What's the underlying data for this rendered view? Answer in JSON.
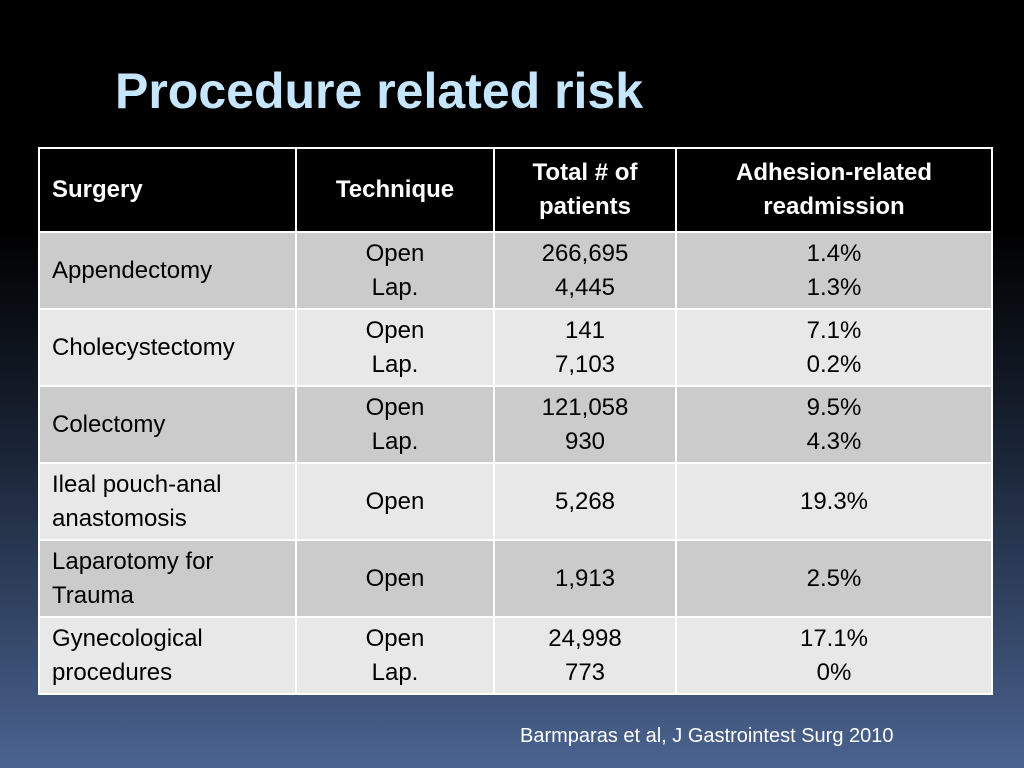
{
  "title": "Procedure related risk",
  "table": {
    "header": [
      [
        "Surgery"
      ],
      [
        "Technique"
      ],
      [
        "Total # of",
        "patients"
      ],
      [
        "Adhesion-related",
        "readmission"
      ]
    ],
    "rows": [
      [
        [
          "Appendectomy"
        ],
        [
          "Open",
          "Lap."
        ],
        [
          "266,695",
          "4,445"
        ],
        [
          "1.4%",
          "1.3%"
        ]
      ],
      [
        [
          "Cholecystectomy"
        ],
        [
          "Open",
          "Lap."
        ],
        [
          "141",
          "7,103"
        ],
        [
          "7.1%",
          "0.2%"
        ]
      ],
      [
        [
          "Colectomy"
        ],
        [
          "Open",
          "Lap."
        ],
        [
          "121,058",
          "930"
        ],
        [
          "9.5%",
          "4.3%"
        ]
      ],
      [
        [
          "Ileal pouch-anal",
          "anastomosis"
        ],
        [
          "Open"
        ],
        [
          "5,268"
        ],
        [
          "19.3%"
        ]
      ],
      [
        [
          "Laparotomy for",
          "Trauma"
        ],
        [
          "Open"
        ],
        [
          "1,913"
        ],
        [
          "2.5%"
        ]
      ],
      [
        [
          "Gynecological",
          "procedures"
        ],
        [
          "Open",
          "Lap."
        ],
        [
          "24,998",
          "773"
        ],
        [
          "17.1%",
          "0%"
        ]
      ]
    ]
  },
  "citation": "Barmparas et al, J Gastrointest Surg 2010"
}
